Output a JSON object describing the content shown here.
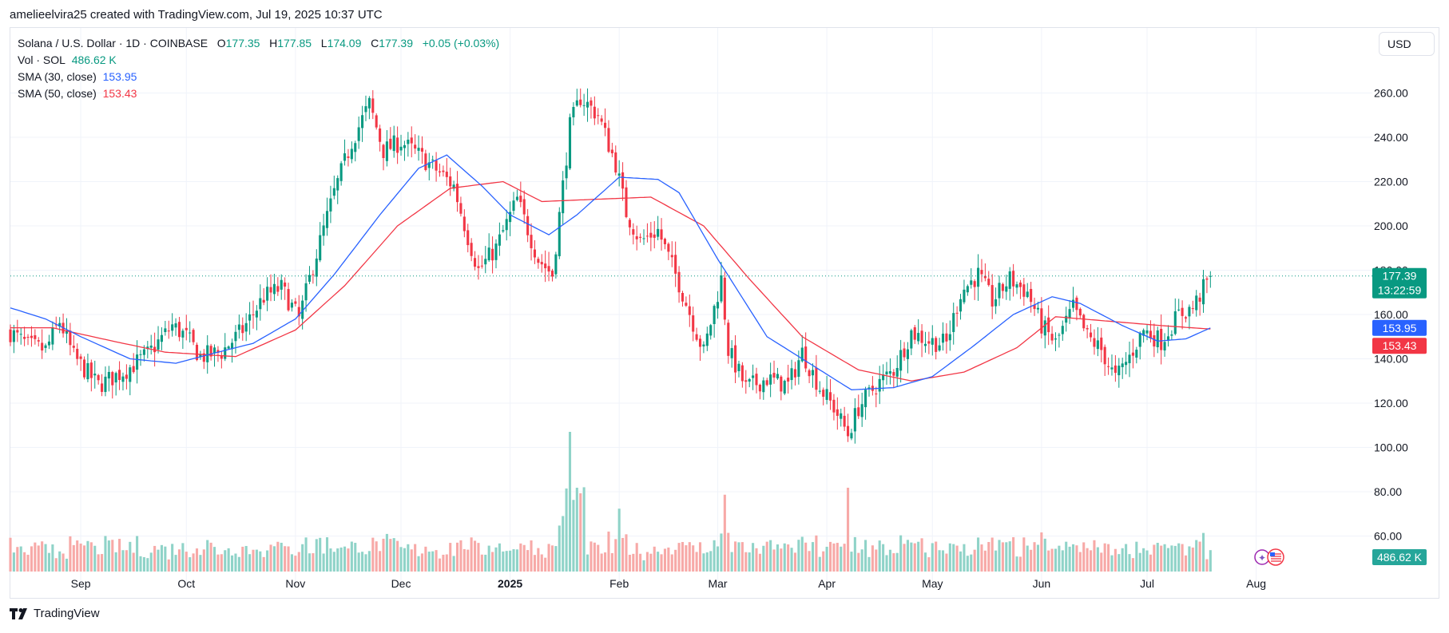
{
  "caption": "amelieelvira25 created with TradingView.com, Jul 19, 2025 10:37 UTC",
  "legend": {
    "symbol": "Solana / U.S. Dollar · 1D · COINBASE",
    "o_label": "O",
    "o": "177.35",
    "h_label": "H",
    "h": "177.85",
    "l_label": "L",
    "l": "174.09",
    "c_label": "C",
    "c": "177.39",
    "change": "+0.05 (+0.03%)",
    "vol_label": "Vol · SOL",
    "vol": "486.62 K",
    "sma30_label": "SMA (30, close)",
    "sma30": "153.95",
    "sma50_label": "SMA (50, close)",
    "sma50": "153.43"
  },
  "currency_button": "USD",
  "price_tags": {
    "last": "177.39",
    "countdown": "13:22:59",
    "sma30": "153.95",
    "sma50": "153.43",
    "volume": "486.62 K"
  },
  "brand": "TradingView",
  "colors": {
    "up": "#089981",
    "down": "#f23645",
    "sma30": "#2962ff",
    "sma50": "#f23645",
    "grid": "#f0f3fa"
  },
  "chart_data": {
    "type": "candlestick",
    "y_ticks": [
      "60.00",
      "80.00",
      "100.00",
      "120.00",
      "140.00",
      "160.00",
      "180.00",
      "200.00",
      "220.00",
      "240.00",
      "260.00"
    ],
    "ylim": [
      48,
      280
    ],
    "x_ticks": [
      "Sep",
      "Oct",
      "Nov",
      "Dec",
      "2025",
      "Feb",
      "Mar",
      "Apr",
      "May",
      "Jun",
      "Jul",
      "Aug"
    ],
    "close_anchors": [
      [
        "2024-08-12",
        152
      ],
      [
        "2024-08-17",
        146
      ],
      [
        "2024-08-22",
        144
      ],
      [
        "2024-08-26",
        157
      ],
      [
        "2024-08-30",
        141
      ],
      [
        "2024-09-06",
        128
      ],
      [
        "2024-09-14",
        135
      ],
      [
        "2024-09-20",
        142
      ],
      [
        "2024-09-27",
        155
      ],
      [
        "2024-10-01",
        150
      ],
      [
        "2024-10-05",
        141
      ],
      [
        "2024-10-11",
        143
      ],
      [
        "2024-10-17",
        153
      ],
      [
        "2024-10-23",
        168
      ],
      [
        "2024-10-28",
        172
      ],
      [
        "2024-11-02",
        158
      ],
      [
        "2024-11-06",
        182
      ],
      [
        "2024-11-12",
        215
      ],
      [
        "2024-11-17",
        238
      ],
      [
        "2024-11-22",
        255
      ],
      [
        "2024-11-26",
        234
      ],
      [
        "2024-12-01",
        238
      ],
      [
        "2024-12-06",
        232
      ],
      [
        "2024-12-12",
        224
      ],
      [
        "2024-12-16",
        218
      ],
      [
        "2024-12-20",
        195
      ],
      [
        "2024-12-23",
        180
      ],
      [
        "2024-12-28",
        190
      ],
      [
        "2025-01-03",
        212
      ],
      [
        "2025-01-09",
        185
      ],
      [
        "2025-01-13",
        178
      ],
      [
        "2025-01-18",
        245
      ],
      [
        "2025-01-21",
        258
      ],
      [
        "2025-01-26",
        250
      ],
      [
        "2025-01-31",
        228
      ],
      [
        "2025-02-03",
        206
      ],
      [
        "2025-02-07",
        193
      ],
      [
        "2025-02-12",
        198
      ],
      [
        "2025-02-18",
        174
      ],
      [
        "2025-02-25",
        143
      ],
      [
        "2025-03-02",
        176
      ],
      [
        "2025-03-04",
        144
      ],
      [
        "2025-03-09",
        127
      ],
      [
        "2025-03-15",
        131
      ],
      [
        "2025-03-21",
        128
      ],
      [
        "2025-03-25",
        143
      ],
      [
        "2025-03-30",
        127
      ],
      [
        "2025-04-03",
        118
      ],
      [
        "2025-04-07",
        106
      ],
      [
        "2025-04-10",
        118
      ],
      [
        "2025-04-15",
        128
      ],
      [
        "2025-04-20",
        135
      ],
      [
        "2025-04-25",
        152
      ],
      [
        "2025-04-30",
        148
      ],
      [
        "2025-05-05",
        147
      ],
      [
        "2025-05-09",
        170
      ],
      [
        "2025-05-14",
        178
      ],
      [
        "2025-05-18",
        166
      ],
      [
        "2025-05-23",
        176
      ],
      [
        "2025-05-28",
        170
      ],
      [
        "2025-06-01",
        155
      ],
      [
        "2025-06-05",
        147
      ],
      [
        "2025-06-10",
        163
      ],
      [
        "2025-06-14",
        150
      ],
      [
        "2025-06-18",
        144
      ],
      [
        "2025-06-22",
        131
      ],
      [
        "2025-06-26",
        141
      ],
      [
        "2025-06-30",
        153
      ],
      [
        "2025-07-05",
        148
      ],
      [
        "2025-07-10",
        160
      ],
      [
        "2025-07-14",
        163
      ],
      [
        "2025-07-19",
        177.39
      ]
    ],
    "sma30_anchors": [
      [
        "2024-08-12",
        163
      ],
      [
        "2024-08-22",
        158
      ],
      [
        "2024-09-01",
        150
      ],
      [
        "2024-09-15",
        140
      ],
      [
        "2024-09-28",
        138
      ],
      [
        "2024-10-10",
        143
      ],
      [
        "2024-10-20",
        147
      ],
      [
        "2024-11-01",
        158
      ],
      [
        "2024-11-12",
        178
      ],
      [
        "2024-11-25",
        205
      ],
      [
        "2024-12-06",
        226
      ],
      [
        "2024-12-14",
        232
      ],
      [
        "2024-12-24",
        218
      ],
      [
        "2025-01-01",
        205
      ],
      [
        "2025-01-12",
        196
      ],
      [
        "2025-01-20",
        205
      ],
      [
        "2025-02-01",
        222
      ],
      [
        "2025-02-12",
        221
      ],
      [
        "2025-02-18",
        215
      ],
      [
        "2025-03-01",
        185
      ],
      [
        "2025-03-15",
        150
      ],
      [
        "2025-03-28",
        137
      ],
      [
        "2025-04-08",
        126
      ],
      [
        "2025-04-20",
        127
      ],
      [
        "2025-05-01",
        132
      ],
      [
        "2025-05-12",
        145
      ],
      [
        "2025-05-24",
        160
      ],
      [
        "2025-06-04",
        168
      ],
      [
        "2025-06-12",
        165
      ],
      [
        "2025-06-24",
        155
      ],
      [
        "2025-07-04",
        148
      ],
      [
        "2025-07-12",
        149
      ],
      [
        "2025-07-19",
        153.95
      ]
    ],
    "sma50_anchors": [
      [
        "2024-08-12",
        154
      ],
      [
        "2024-08-24",
        154
      ],
      [
        "2024-09-10",
        148
      ],
      [
        "2024-09-25",
        143
      ],
      [
        "2024-10-15",
        141
      ],
      [
        "2024-11-01",
        153
      ],
      [
        "2024-11-15",
        173
      ],
      [
        "2024-11-30",
        200
      ],
      [
        "2024-12-15",
        217
      ],
      [
        "2024-12-30",
        220
      ],
      [
        "2025-01-10",
        211
      ],
      [
        "2025-01-25",
        212
      ],
      [
        "2025-02-10",
        213
      ],
      [
        "2025-02-25",
        200
      ],
      [
        "2025-03-10",
        176
      ],
      [
        "2025-03-25",
        150
      ],
      [
        "2025-04-10",
        135
      ],
      [
        "2025-04-25",
        130
      ],
      [
        "2025-05-10",
        134
      ],
      [
        "2025-05-25",
        145
      ],
      [
        "2025-06-05",
        159
      ],
      [
        "2025-06-20",
        157
      ],
      [
        "2025-07-05",
        155
      ],
      [
        "2025-07-19",
        153.43
      ]
    ],
    "volume_spikes": [
      [
        "2025-01-18",
        1.0
      ],
      [
        "2025-01-20",
        0.6
      ],
      [
        "2025-03-03",
        0.55
      ],
      [
        "2025-04-07",
        0.6
      ],
      [
        "2025-02-01",
        0.45
      ]
    ]
  }
}
